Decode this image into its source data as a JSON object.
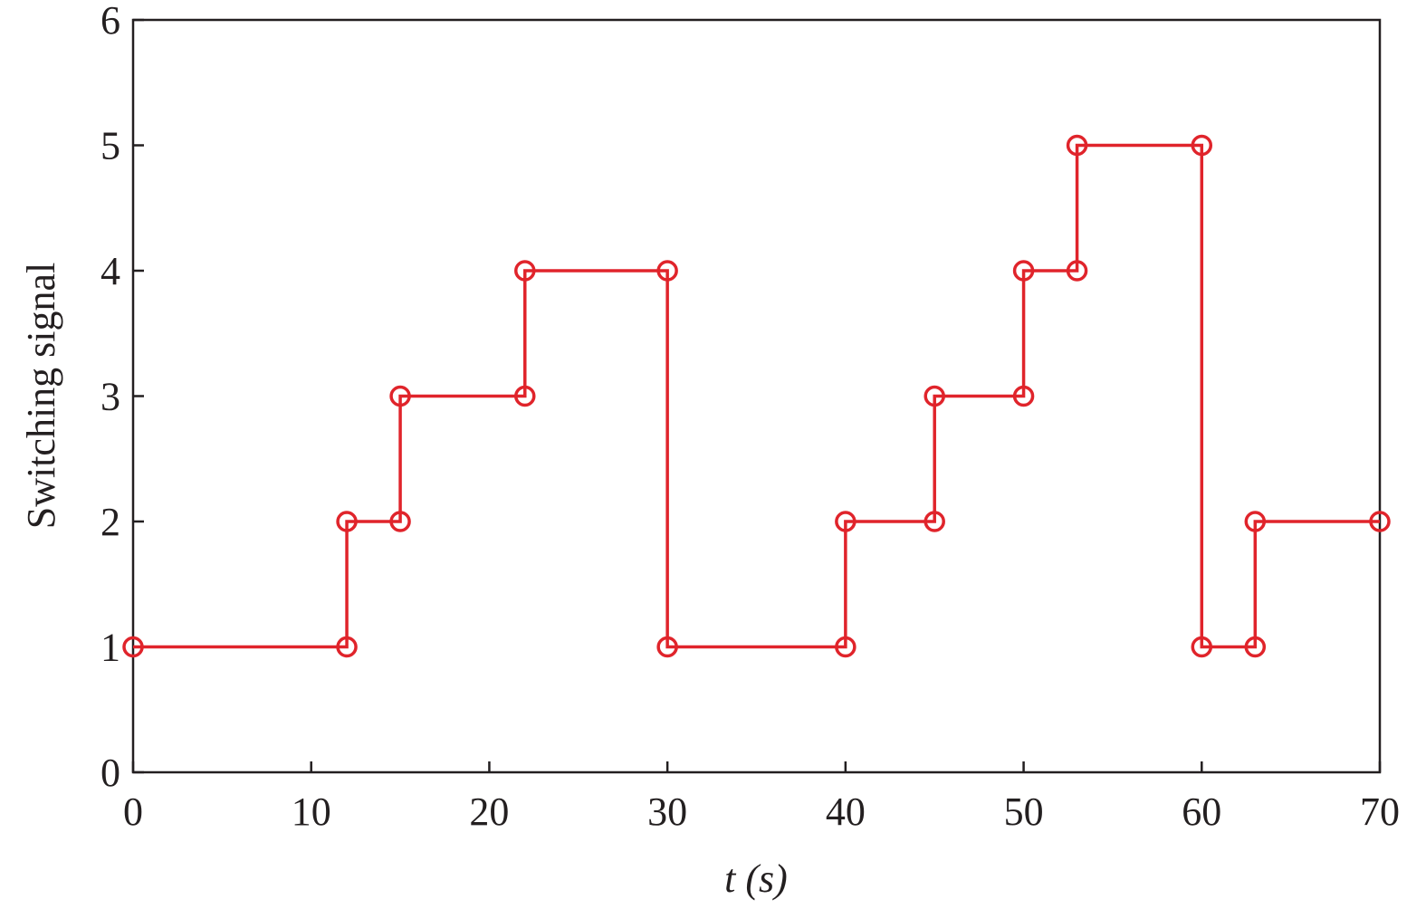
{
  "chart_data": {
    "type": "line",
    "xlabel": "t (s)",
    "ylabel": "Switching signal",
    "x": [
      0,
      12,
      12,
      15,
      15,
      22,
      22,
      30,
      30,
      40,
      40,
      45,
      45,
      50,
      50,
      53,
      53,
      60,
      60,
      63,
      63,
      70
    ],
    "series": [
      {
        "color": "#e0242b",
        "values": [
          1,
          1,
          2,
          2,
          3,
          3,
          4,
          4,
          1,
          1,
          2,
          2,
          3,
          3,
          4,
          4,
          5,
          5,
          1,
          1,
          2,
          2
        ]
      }
    ],
    "xlim": [
      0,
      70
    ],
    "xticks": [
      0,
      10,
      20,
      30,
      40,
      50,
      60,
      70
    ],
    "ylim": [
      0,
      6
    ],
    "yticks": [
      0,
      1,
      2,
      3,
      4,
      5,
      6
    ],
    "markers": true,
    "grid": false
  }
}
